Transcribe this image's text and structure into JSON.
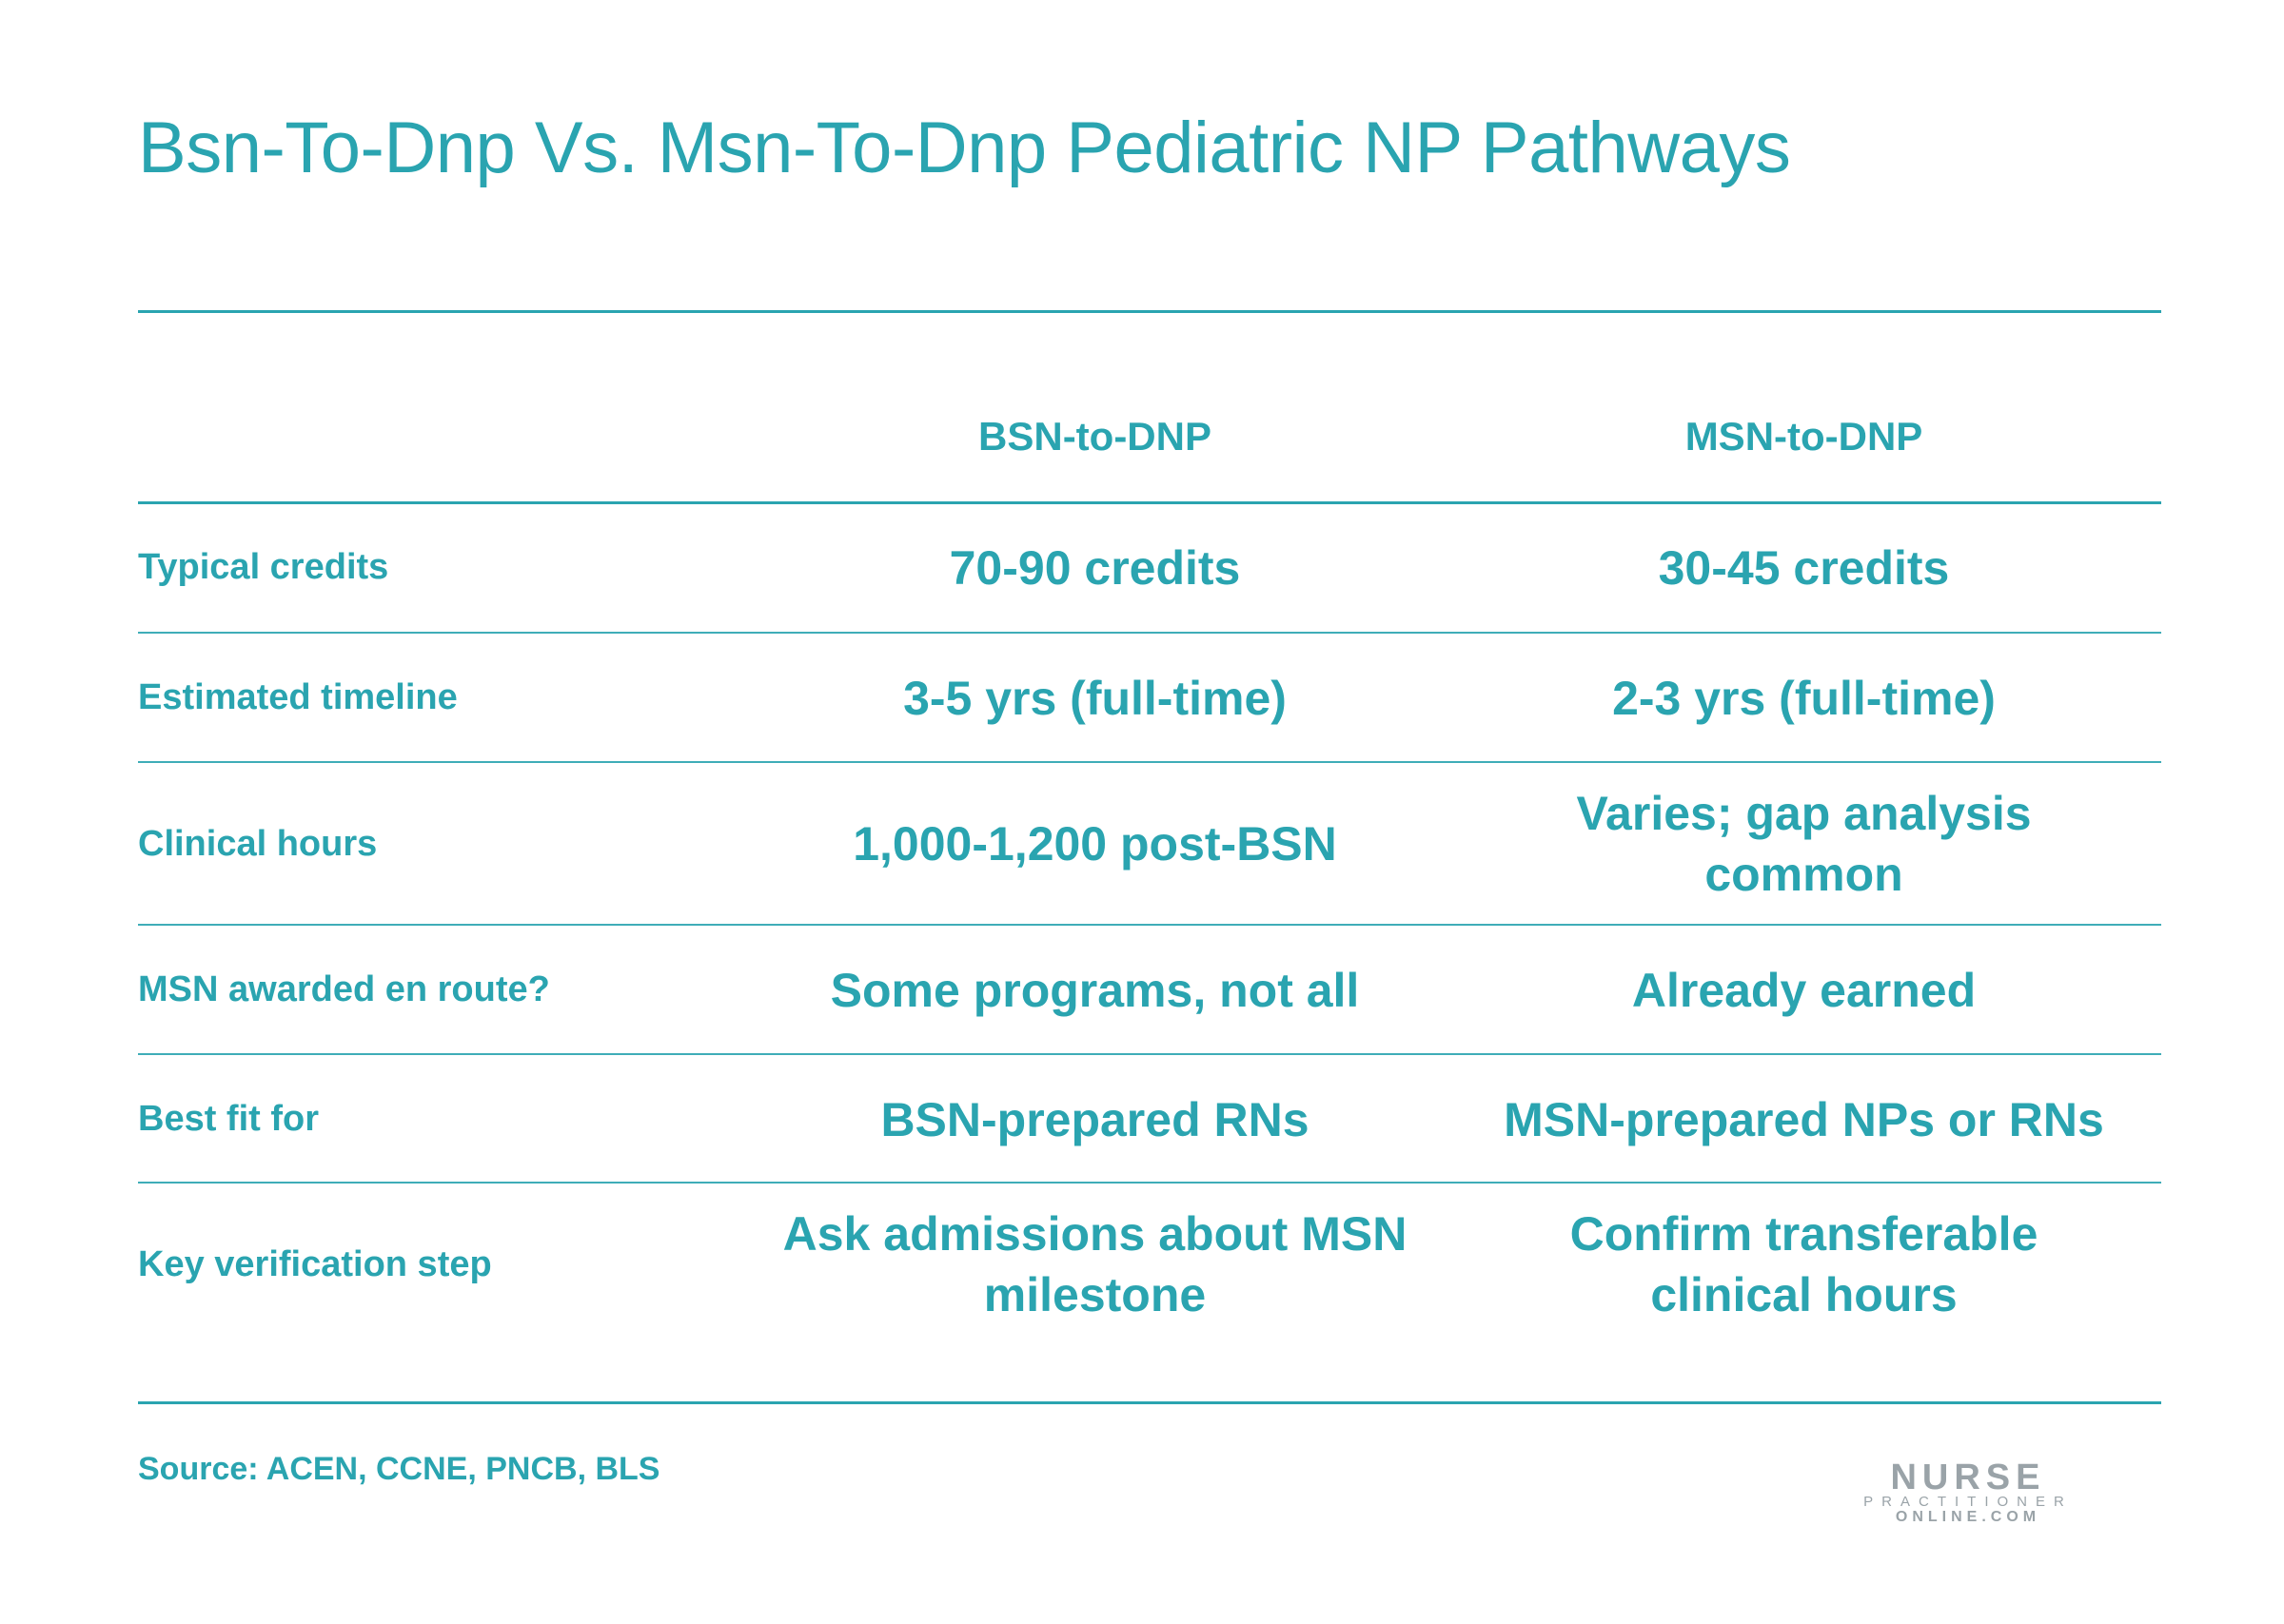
{
  "title": "Bsn-To-Dnp Vs. Msn-To-Dnp Pediatric NP Pathways",
  "columns": [
    "BSN-to-DNP",
    "MSN-to-DNP"
  ],
  "rows": [
    {
      "label": "Typical credits",
      "bsn": "70-90 credits",
      "msn": "30-45 credits"
    },
    {
      "label": "Estimated timeline",
      "bsn": "3-5 yrs (full-time)",
      "msn": "2-3 yrs (full-time)"
    },
    {
      "label": "Clinical hours",
      "bsn": "1,000-1,200 post-BSN",
      "msn": "Varies; gap analysis common"
    },
    {
      "label": "MSN awarded en route?",
      "bsn": "Some programs, not all",
      "msn": "Already earned"
    },
    {
      "label": "Best fit for",
      "bsn": "BSN-prepared RNs",
      "msn": "MSN-prepared NPs or RNs"
    },
    {
      "label": "Key verification step",
      "bsn": "Ask admissions about MSN milestone",
      "msn": "Confirm transferable clinical hours"
    }
  ],
  "source": "Source: ACEN, CCNE, PNCB, BLS",
  "logo": {
    "line1": "NURSE",
    "line2": "PRACTITIONER",
    "line3": "ONLINE.COM"
  },
  "colors": {
    "accent": "#2aa4b0",
    "logo": "#9aa3a8"
  }
}
